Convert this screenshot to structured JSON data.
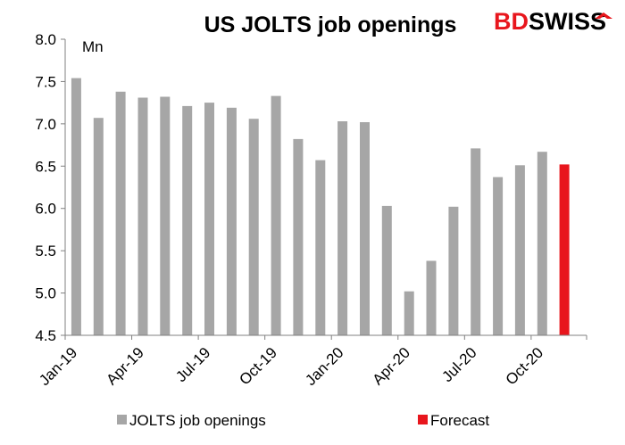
{
  "chart_data": {
    "type": "bar",
    "title": "US JOLTS job openings",
    "unit_label": "Mn",
    "categories": [
      "Jan-19",
      "Feb-19",
      "Mar-19",
      "Apr-19",
      "May-19",
      "Jun-19",
      "Jul-19",
      "Aug-19",
      "Sep-19",
      "Oct-19",
      "Nov-19",
      "Dec-19",
      "Jan-20",
      "Feb-20",
      "Mar-20",
      "Apr-20",
      "May-20",
      "Jun-20",
      "Jul-20",
      "Aug-20",
      "Sep-20",
      "Oct-20",
      "Nov-20"
    ],
    "x_tick_labels": [
      "Jan-19",
      "Apr-19",
      "Jul-19",
      "Oct-19",
      "Jan-20",
      "Apr-20",
      "Jul-20",
      "Oct-20"
    ],
    "series": [
      {
        "name": "JOLTS job openings",
        "color": "#a6a6a6",
        "values": [
          7.54,
          7.07,
          7.38,
          7.31,
          7.32,
          7.21,
          7.25,
          7.19,
          7.06,
          7.33,
          6.82,
          6.57,
          7.03,
          7.02,
          6.03,
          5.02,
          5.38,
          6.02,
          6.71,
          6.37,
          6.51,
          6.67,
          null
        ]
      },
      {
        "name": "Forecast",
        "color": "#e8161d",
        "values": [
          null,
          null,
          null,
          null,
          null,
          null,
          null,
          null,
          null,
          null,
          null,
          null,
          null,
          null,
          null,
          null,
          null,
          null,
          null,
          null,
          null,
          null,
          6.52
        ]
      }
    ],
    "ylim": [
      4.5,
      8.0
    ],
    "y_ticks": [
      "4.5",
      "5.0",
      "5.5",
      "6.0",
      "6.5",
      "7.0",
      "7.5",
      "8.0"
    ],
    "grid": false,
    "legend_position": "bottom"
  },
  "logo": {
    "text_bd": "BD",
    "text_swiss": "SWISS",
    "color_bd": "#e8161d",
    "color_swiss": "#000000"
  }
}
